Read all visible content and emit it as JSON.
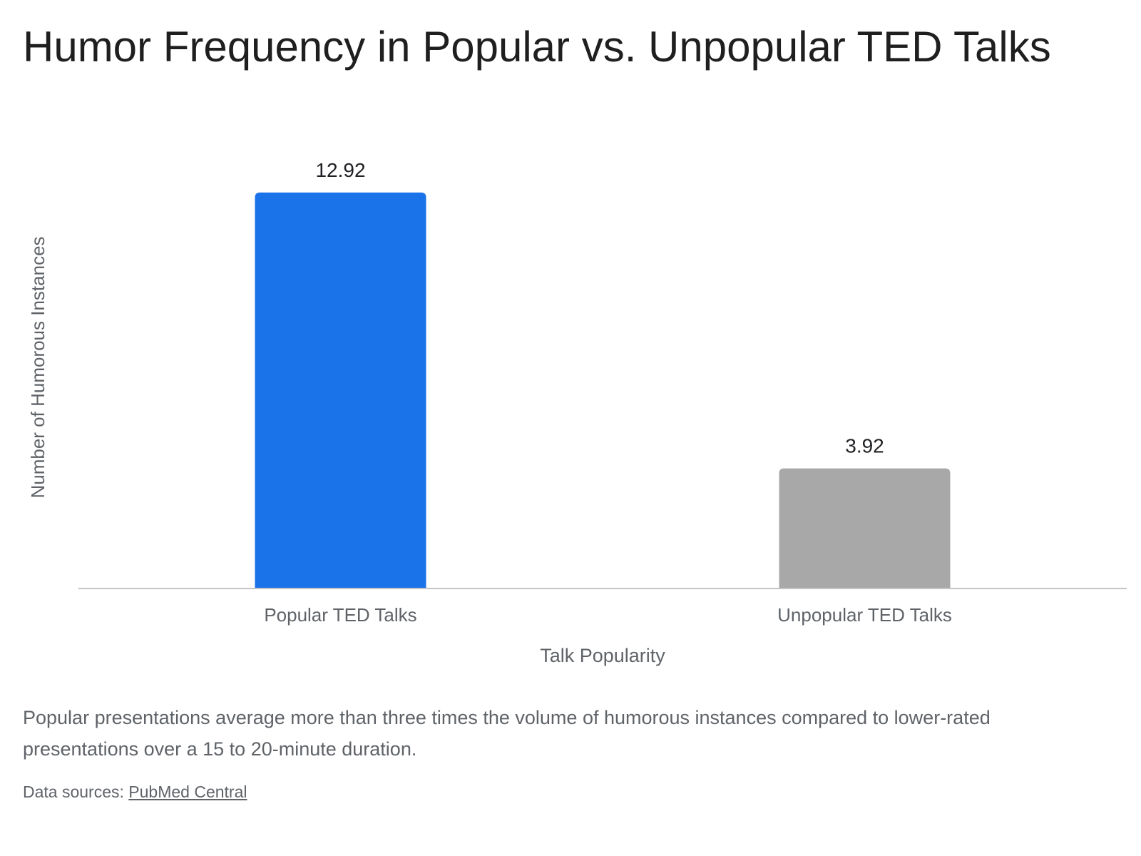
{
  "chart_data": {
    "type": "bar",
    "title": "Humor Frequency in Popular vs. Unpopular TED Talks",
    "xlabel": "Talk Popularity",
    "ylabel": "Number of Humorous Instances",
    "categories": [
      "Popular TED Talks",
      "Unpopular TED Talks"
    ],
    "values": [
      12.92,
      3.92
    ],
    "data_labels": [
      "12.92",
      "3.92"
    ],
    "colors": [
      "#1a73e8",
      "#a8a8a8"
    ],
    "ylim": [
      0,
      13.5
    ],
    "grid": false,
    "legend": "none"
  },
  "caption": "Popular presentations average more than three times the volume of humorous instances compared to lower-rated presentations over a 15 to 20-minute duration.",
  "sources": {
    "prefix": "Data sources: ",
    "link_label": "PubMed Central"
  }
}
